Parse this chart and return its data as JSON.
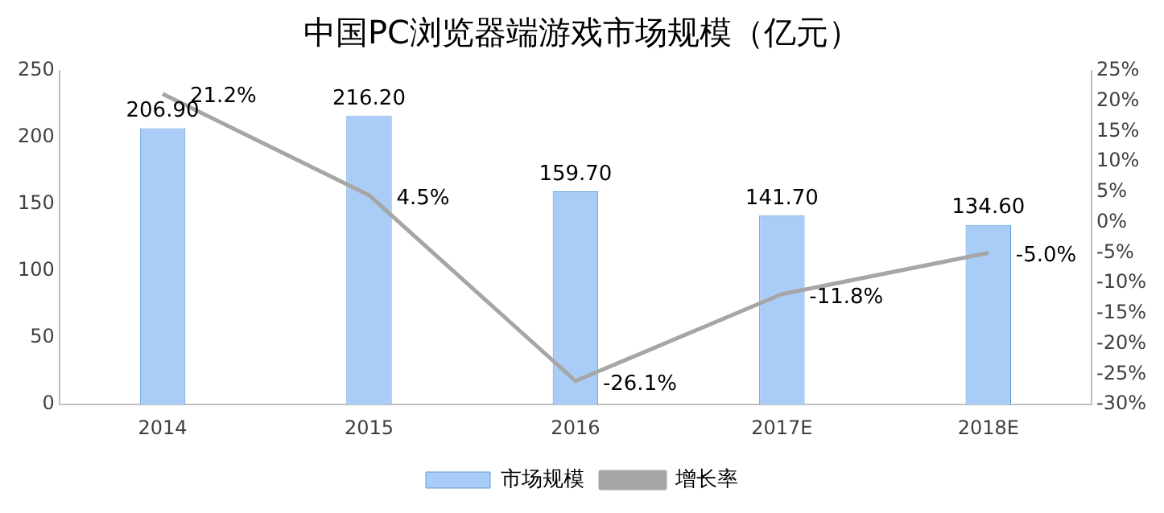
{
  "chart_data": {
    "type": "bar",
    "title": "中国PC浏览器端游戏市场规模（亿元）",
    "categories": [
      "2014",
      "2015",
      "2016",
      "2017E",
      "2018E"
    ],
    "series": [
      {
        "name": "市场规模",
        "color": "#a9cdf7",
        "values": [
          206.9,
          216.2,
          159.7,
          141.7,
          134.6
        ],
        "value_labels": [
          "206.90",
          "216.20",
          "159.70",
          "141.70",
          "134.60"
        ]
      },
      {
        "name": "增长率",
        "type": "line",
        "axis": "y2",
        "color": "#a6a6a6",
        "values": [
          21.2,
          4.5,
          -26.1,
          -11.8,
          -5.0
        ],
        "value_labels": [
          "21.2%",
          "4.5%",
          "-26.1%",
          "-11.8%",
          "-5.0%"
        ]
      }
    ],
    "ylim": [
      0,
      250
    ],
    "yticks": [
      0,
      50,
      100,
      150,
      200,
      250
    ],
    "y2lim": [
      -30,
      25
    ],
    "y2ticks": [
      {
        "value": -30,
        "label": "-30%"
      },
      {
        "value": -25,
        "label": "-25%"
      },
      {
        "value": -20,
        "label": "-20%"
      },
      {
        "value": -15,
        "label": "-15%"
      },
      {
        "value": -10,
        "label": "-10%"
      },
      {
        "value": -5,
        "label": "-5%"
      },
      {
        "value": 0,
        "label": "0%"
      },
      {
        "value": 5,
        "label": "5%"
      },
      {
        "value": 10,
        "label": "10%"
      },
      {
        "value": 15,
        "label": "15%"
      },
      {
        "value": 20,
        "label": "20%"
      },
      {
        "value": 25,
        "label": "25%"
      }
    ],
    "grid": false,
    "legend": "bottom",
    "marker": "none",
    "line_style": "solid"
  }
}
